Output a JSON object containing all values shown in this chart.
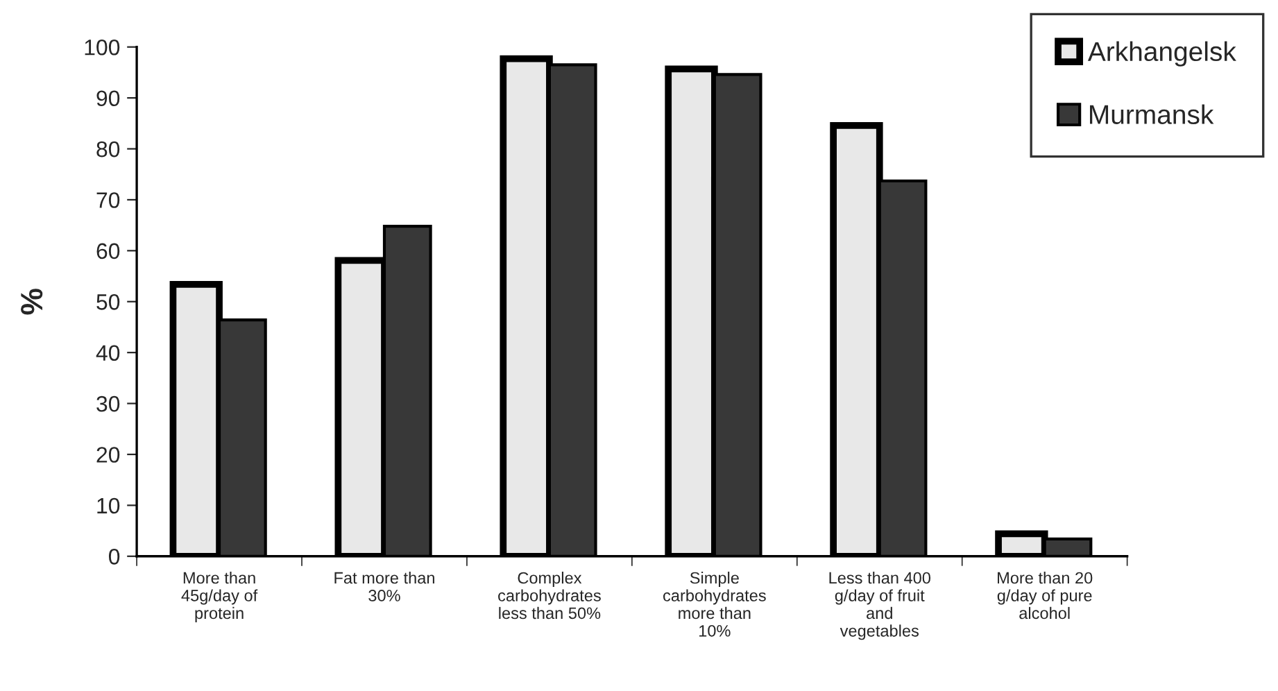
{
  "chart_data": {
    "type": "bar",
    "ylabel": "%",
    "categories": [
      "More than\n45g/day of\nprotein",
      "Fat more than\n30%",
      "Complex\ncarbohydrates\nless than 50%",
      "Simple\ncarbohydrates\nmore than\n10%",
      "Less than 400\ng/day of fruit\nand\nvegetables",
      "More than 20\ng/day of pure\nalcohol"
    ],
    "series": [
      {
        "name": "Arkhangelsk",
        "color": "#e8e8e8",
        "values": [
          53.4,
          58.1,
          97.7,
          95.7,
          84.6,
          4.4
        ]
      },
      {
        "name": "Murmansk",
        "color": "#383838",
        "values": [
          46.4,
          64.8,
          96.5,
          94.6,
          73.7,
          3.4
        ]
      }
    ],
    "ylim": [
      0,
      100
    ],
    "yticks": [
      0,
      10,
      20,
      30,
      40,
      50,
      60,
      70,
      80,
      90,
      100
    ],
    "grid": false,
    "legend": "top right"
  }
}
